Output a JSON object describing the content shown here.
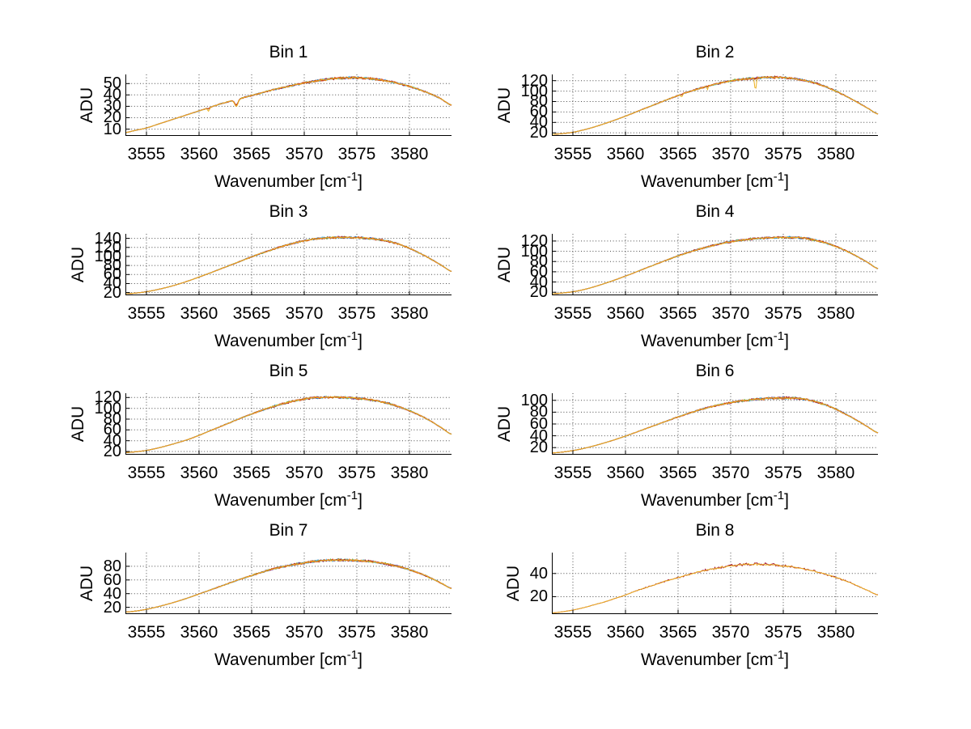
{
  "colors": {
    "background": "#ffffff",
    "axis": "#000000",
    "grid": "#4d4d4d"
  },
  "chart_data": [
    {
      "type": "line",
      "title": "Bin 1",
      "ylabel": "ADU",
      "xlabel": "Wavenumber [cm^-1]",
      "xlabel_main": "Wavenumber [cm",
      "xlabel_sup": "-1",
      "xlabel_close": "]",
      "xlim": [
        3553,
        3584
      ],
      "ylim": [
        4,
        58
      ],
      "xticks": [
        3555,
        3560,
        3565,
        3570,
        3575,
        3580
      ],
      "yticks": [
        10,
        20,
        30,
        40,
        50
      ],
      "grid": "dotted",
      "x_start": 3553,
      "x_step": 1,
      "profile_y": [
        7,
        9,
        11,
        14,
        17,
        20,
        23,
        26,
        29,
        32,
        34.5,
        37,
        39.5,
        42,
        44.5,
        46.5,
        48.5,
        50.5,
        52,
        53.5,
        54.5,
        55,
        55,
        54.5,
        53.5,
        52,
        50,
        47.5,
        44.5,
        41,
        36.5,
        31
      ],
      "peak": 55,
      "noise": 1.1,
      "features": [
        {
          "x": 3563.55,
          "depth": 6,
          "width": 0.22,
          "others": 0.8
        },
        {
          "x": 3560.9,
          "depth": 3,
          "width": 0.12,
          "others": 0.3
        }
      ],
      "series_colors": [
        "#0072bd",
        "#77ac30",
        "#7e2f8e",
        "#4dbeee",
        "#a2142f",
        "#d95319",
        "#edb120"
      ]
    },
    {
      "type": "line",
      "title": "Bin 2",
      "ylabel": "ADU",
      "xlabel": "Wavenumber [cm^-1]",
      "xlabel_main": "Wavenumber [cm",
      "xlabel_sup": "-1",
      "xlabel_close": "]",
      "xlim": [
        3553,
        3584
      ],
      "ylim": [
        14,
        132
      ],
      "xticks": [
        3555,
        3560,
        3565,
        3570,
        3575,
        3580
      ],
      "yticks": [
        20,
        40,
        60,
        80,
        100,
        120
      ],
      "grid": "dotted",
      "x_start": 3553,
      "x_step": 1,
      "profile_y": [
        17,
        18.5,
        21,
        25.5,
        31,
        37.5,
        44.5,
        52,
        60,
        68,
        76,
        84,
        91.5,
        98.5,
        105,
        110.5,
        115.5,
        119.5,
        122.5,
        124.5,
        126,
        126.5,
        126,
        124,
        120.5,
        115.5,
        108.5,
        100,
        90,
        79,
        67.5,
        56
      ],
      "peak": 126.5,
      "noise": 2.2,
      "features": [
        {
          "x": 3572.35,
          "depth": 24,
          "width": 0.1,
          "others": 0.06
        },
        {
          "x": 3565.35,
          "depth": 6,
          "width": 0.08,
          "others": 0.1
        },
        {
          "x": 3567.8,
          "depth": 6,
          "width": 0.08,
          "others": 0.1
        }
      ],
      "series_colors": [
        "#0072bd",
        "#77ac30",
        "#7e2f8e",
        "#4dbeee",
        "#a2142f",
        "#d95319",
        "#edb120"
      ]
    },
    {
      "type": "line",
      "title": "Bin 3",
      "ylabel": "ADU",
      "xlabel": "Wavenumber [cm^-1]",
      "xlabel_main": "Wavenumber [cm",
      "xlabel_sup": "-1",
      "xlabel_close": "]",
      "xlim": [
        3553,
        3584
      ],
      "ylim": [
        14,
        150
      ],
      "xticks": [
        3555,
        3560,
        3565,
        3570,
        3575,
        3580
      ],
      "yticks": [
        20,
        40,
        60,
        80,
        100,
        120,
        140
      ],
      "grid": "dotted",
      "x_start": 3553,
      "x_step": 1,
      "profile_y": [
        17.5,
        19,
        22,
        26.5,
        32,
        38.5,
        46,
        54.5,
        63,
        72,
        81,
        90,
        99,
        107.5,
        115.5,
        123,
        129.5,
        134.5,
        138.5,
        141,
        142,
        142,
        141.5,
        140,
        137.5,
        133.5,
        127,
        118,
        107,
        94.5,
        81,
        67
      ],
      "peak": 142,
      "noise": 2.4,
      "features": [],
      "series_colors": [
        "#0072bd",
        "#77ac30",
        "#7e2f8e",
        "#4dbeee",
        "#a2142f",
        "#d95319",
        "#edb120"
      ]
    },
    {
      "type": "line",
      "title": "Bin 4",
      "ylabel": "ADU",
      "xlabel": "Wavenumber [cm^-1]",
      "xlabel_main": "Wavenumber [cm",
      "xlabel_sup": "-1",
      "xlabel_close": "]",
      "xlim": [
        3553,
        3584
      ],
      "ylim": [
        14,
        134
      ],
      "xticks": [
        3555,
        3560,
        3565,
        3570,
        3575,
        3580
      ],
      "yticks": [
        20,
        40,
        60,
        80,
        100,
        120
      ],
      "grid": "dotted",
      "x_start": 3553,
      "x_step": 1,
      "profile_y": [
        17,
        18.5,
        21,
        25,
        30.5,
        37,
        44,
        51.5,
        59.5,
        67.5,
        75.5,
        83.5,
        91,
        98,
        104,
        109.5,
        114.5,
        118.5,
        121.5,
        124,
        125.5,
        126.5,
        127,
        126.5,
        125.5,
        121.5,
        116.5,
        109.5,
        100.5,
        90,
        78.5,
        66
      ],
      "peak": 127,
      "noise": 2.2,
      "features": [],
      "series_colors": [
        "#0072bd",
        "#77ac30",
        "#7e2f8e",
        "#4dbeee",
        "#a2142f",
        "#d95319",
        "#edb120"
      ]
    },
    {
      "type": "line",
      "title": "Bin 5",
      "ylabel": "ADU",
      "xlabel": "Wavenumber [cm^-1]",
      "xlabel_main": "Wavenumber [cm",
      "xlabel_sup": "-1",
      "xlabel_close": "]",
      "xlim": [
        3553,
        3584
      ],
      "ylim": [
        14,
        128
      ],
      "xticks": [
        3555,
        3560,
        3565,
        3570,
        3575,
        3580
      ],
      "yticks": [
        20,
        40,
        60,
        80,
        100,
        120
      ],
      "grid": "dotted",
      "x_start": 3553,
      "x_step": 1,
      "profile_y": [
        18,
        19.5,
        22,
        26,
        31,
        36.5,
        42.5,
        50,
        58,
        66,
        74,
        82,
        89.5,
        96.5,
        103,
        108.5,
        113.5,
        117,
        119.5,
        120.5,
        120.5,
        120,
        118.5,
        116.5,
        113.5,
        109,
        103,
        95.5,
        87,
        76.5,
        64.5,
        52
      ],
      "peak": 120.5,
      "noise": 2.2,
      "features": [],
      "series_colors": [
        "#0072bd",
        "#77ac30",
        "#7e2f8e",
        "#4dbeee",
        "#a2142f",
        "#d95319",
        "#edb120"
      ]
    },
    {
      "type": "line",
      "title": "Bin 6",
      "ylabel": "ADU",
      "xlabel": "Wavenumber [cm^-1]",
      "xlabel_main": "Wavenumber [cm",
      "xlabel_sup": "-1",
      "xlabel_close": "]",
      "xlim": [
        3553,
        3584
      ],
      "ylim": [
        8,
        112
      ],
      "xticks": [
        3555,
        3560,
        3565,
        3570,
        3575,
        3580
      ],
      "yticks": [
        20,
        40,
        60,
        80,
        100
      ],
      "grid": "dotted",
      "x_start": 3553,
      "x_step": 1,
      "profile_y": [
        11,
        12.5,
        15,
        18.5,
        23,
        28,
        33.5,
        39.5,
        46,
        52.5,
        59,
        65.5,
        72,
        78,
        83.5,
        88.5,
        92.5,
        96,
        99,
        101,
        102.5,
        103.5,
        104,
        103.5,
        102,
        98,
        92.5,
        85,
        76,
        66,
        55.5,
        45
      ],
      "peak": 104,
      "noise": 2.0,
      "features": [],
      "series_colors": [
        "#0072bd",
        "#77ac30",
        "#7e2f8e",
        "#4dbeee",
        "#a2142f",
        "#d95319",
        "#edb120"
      ]
    },
    {
      "type": "line",
      "title": "Bin 7",
      "ylabel": "ADU",
      "xlabel": "Wavenumber [cm^-1]",
      "xlabel_main": "Wavenumber [cm",
      "xlabel_sup": "-1",
      "xlabel_close": "]",
      "xlim": [
        3553,
        3584
      ],
      "ylim": [
        10,
        100
      ],
      "xticks": [
        3555,
        3560,
        3565,
        3570,
        3575,
        3580
      ],
      "yticks": [
        20,
        40,
        60,
        80
      ],
      "grid": "dotted",
      "x_start": 3553,
      "x_step": 1,
      "profile_y": [
        13,
        14.5,
        17,
        20.5,
        24.5,
        29,
        34,
        39.5,
        45,
        50.5,
        56,
        61.5,
        66.5,
        71.5,
        76,
        79.5,
        82.5,
        85,
        87,
        88.5,
        89,
        89,
        88.5,
        87.5,
        85.5,
        83,
        79.5,
        75,
        69.5,
        63,
        55.5,
        47.5
      ],
      "peak": 89,
      "noise": 1.8,
      "features": [],
      "series_colors": [
        "#0072bd",
        "#77ac30",
        "#7e2f8e",
        "#4dbeee",
        "#a2142f",
        "#d95319",
        "#edb120"
      ]
    },
    {
      "type": "line",
      "title": "Bin 8",
      "ylabel": "ADU",
      "xlabel": "Wavenumber [cm^-1]",
      "xlabel_main": "Wavenumber [cm",
      "xlabel_sup": "-1",
      "xlabel_close": "]",
      "xlim": [
        3553,
        3584
      ],
      "ylim": [
        5,
        58
      ],
      "xticks": [
        3555,
        3560,
        3565,
        3570,
        3575,
        3580
      ],
      "yticks": [
        20,
        40
      ],
      "grid": "dotted",
      "x_start": 3553,
      "x_step": 1,
      "profile_y": [
        6,
        7,
        8.5,
        10.5,
        13,
        15.5,
        18.5,
        21.5,
        25,
        28,
        31,
        34,
        36.5,
        39,
        41.5,
        43.5,
        45,
        46.5,
        47.5,
        48,
        48,
        47.5,
        46.5,
        45.5,
        44,
        42,
        39.5,
        36.5,
        33.5,
        29.5,
        25.5,
        21.5
      ],
      "peak": 48,
      "noise": 1.2,
      "features": [],
      "series_colors": [
        "#a2142f",
        "#edb120"
      ]
    }
  ]
}
